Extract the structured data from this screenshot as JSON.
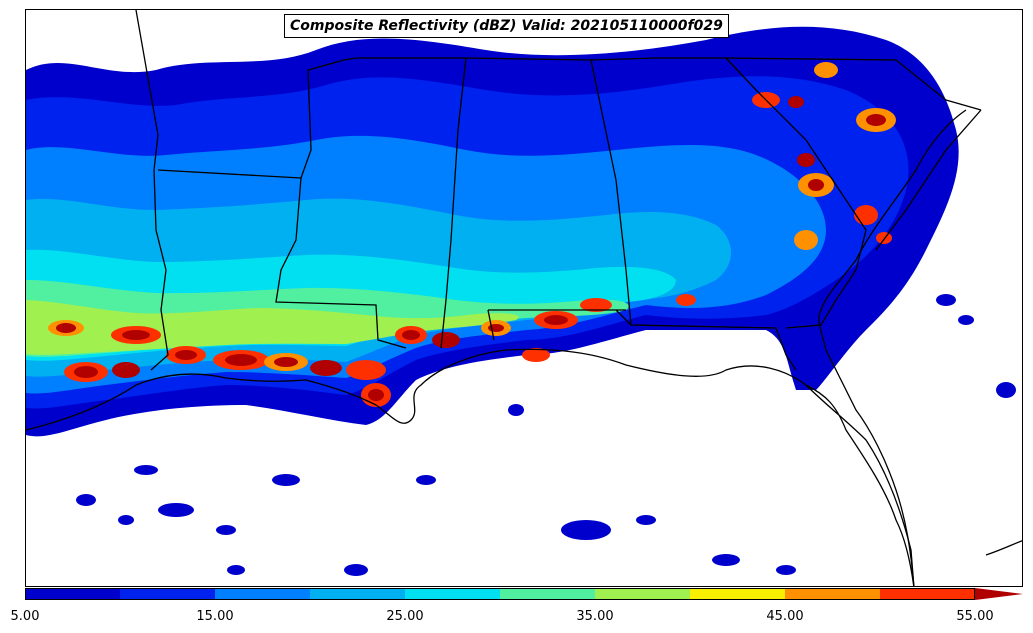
{
  "title": "Composite Reflectivity (dBZ) Valid: 202105110000f029",
  "colorbar": {
    "ticks": [
      "5.00",
      "15.00",
      "25.00",
      "35.00",
      "45.00",
      "55.00"
    ],
    "levels": [
      5,
      10,
      15,
      20,
      25,
      30,
      35,
      40,
      45,
      50,
      55
    ],
    "colors": [
      "#0000cd",
      "#0022ee",
      "#0080ff",
      "#00b0f0",
      "#00e0f0",
      "#50f0a0",
      "#a0f050",
      "#f8f000",
      "#ff9000",
      "#ff3000",
      "#b00000"
    ],
    "extend": "max"
  }
}
